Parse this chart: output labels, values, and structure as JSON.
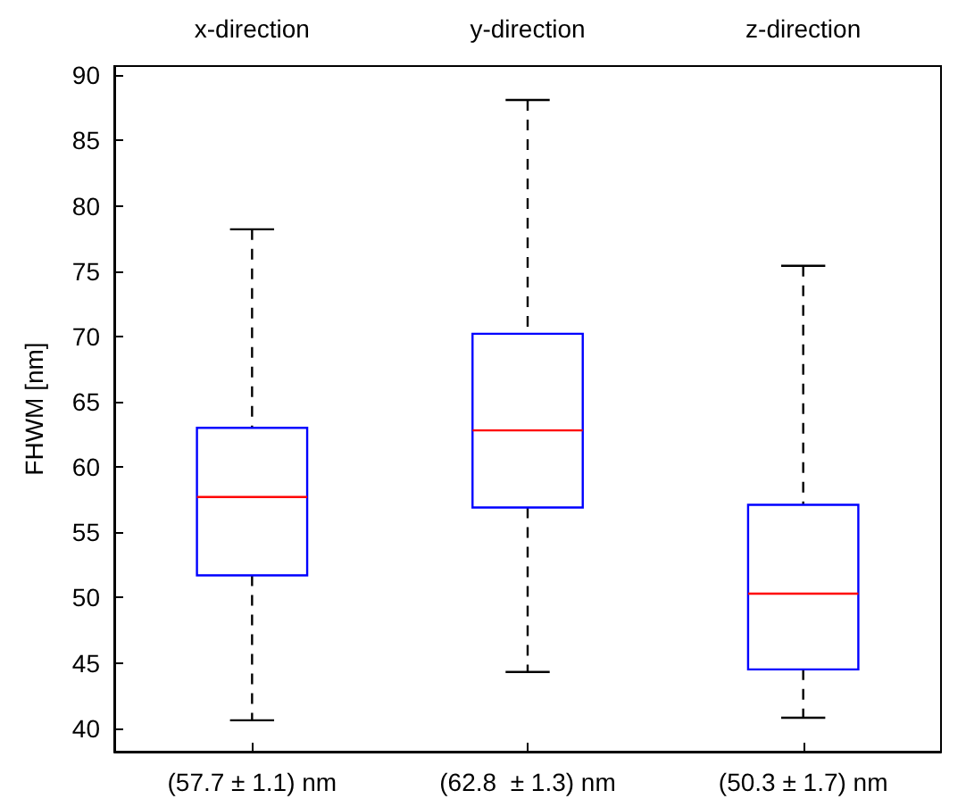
{
  "chart_data": {
    "type": "box",
    "ylabel": "FHWM [nm]",
    "categories": [
      "(57.7 ± 1.1) nm",
      "(62.8  ± 1.3) nm",
      "(50.3 ± 1.7) nm"
    ],
    "ylim": [
      38.2,
      90.7
    ],
    "yticks": [
      40,
      45,
      50,
      55,
      60,
      65,
      70,
      75,
      80,
      85,
      90
    ],
    "grid": false,
    "series": [
      {
        "color": "#0000ff",
        "boxes": [
          {
            "low": 40.6,
            "q1": 51.7,
            "median": 57.7,
            "q3": 63.0,
            "high": 78.2
          },
          {
            "low": 44.3,
            "q1": 56.9,
            "median": 62.8,
            "q3": 70.2,
            "high": 88.1
          },
          {
            "low": 40.8,
            "q1": 44.5,
            "median": 50.3,
            "q3": 57.1,
            "high": 75.4
          }
        ]
      }
    ],
    "annotations": [
      "x-direction",
      "y-direction",
      "z-direction"
    ]
  }
}
